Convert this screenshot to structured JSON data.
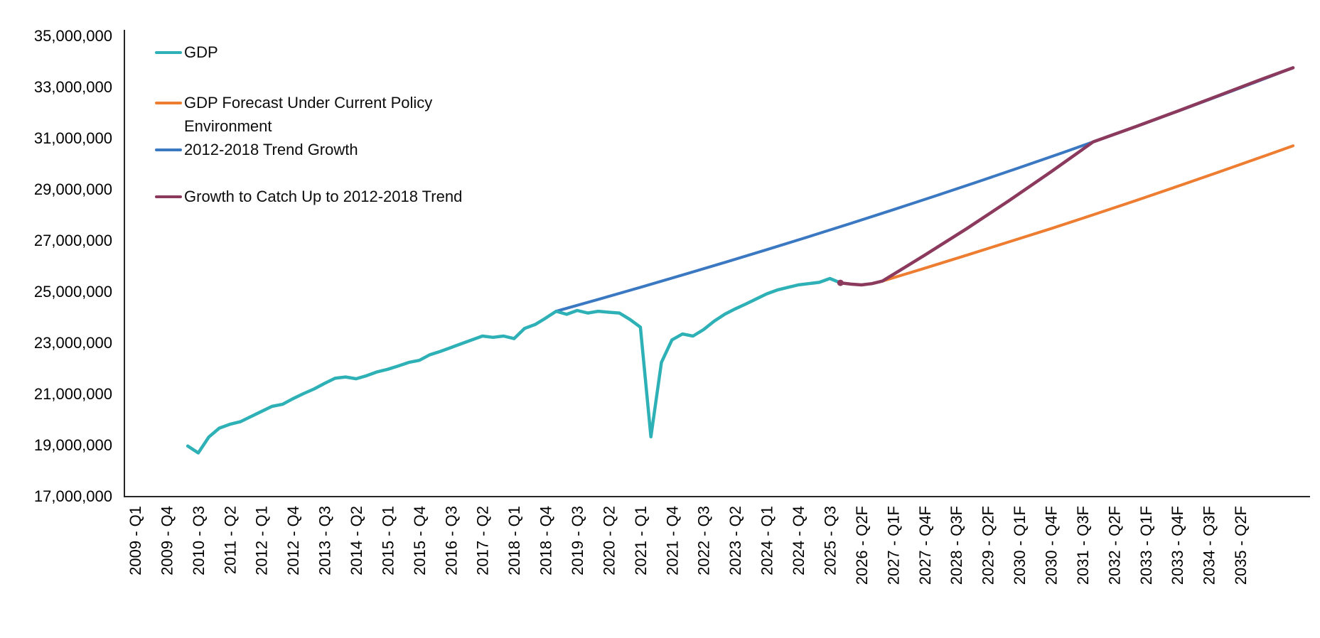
{
  "chart_data": {
    "type": "line",
    "title": "",
    "xlabel": "",
    "ylabel": "",
    "grid": false,
    "legend_position": "top-left-inside",
    "axis_color": "#262626",
    "y_axis": {
      "min": 17000000,
      "max": 35000000,
      "tick_step": 2000000,
      "tick_labels": [
        "17,000,000",
        "19,000,000",
        "21,000,000",
        "23,000,000",
        "25,000,000",
        "27,000,000",
        "29,000,000",
        "31,000,000",
        "33,000,000",
        "35,000,000"
      ]
    },
    "x_axis": {
      "unit": "quarter",
      "tick_every_n_quarters": 3,
      "tick_labels": [
        "2009 - Q1",
        "2009 - Q4",
        "2010 - Q3",
        "2011 - Q2",
        "2012 - Q1",
        "2012 - Q4",
        "2013 - Q3",
        "2014 - Q2",
        "2015 - Q1",
        "2015 - Q4",
        "2016 - Q3",
        "2017 - Q2",
        "2018 - Q1",
        "2018 - Q4",
        "2019 - Q3",
        "2020 - Q2",
        "2021 - Q1",
        "2021 - Q4",
        "2022 - Q3",
        "2023 - Q2",
        "2024 - Q1",
        "2024 - Q4",
        "2025 - Q3",
        "2026 - Q2F",
        "2027 - Q1F",
        "2027 - Q4F",
        "2028 - Q3F",
        "2029 - Q2F",
        "2030 - Q1F",
        "2030 - Q4F",
        "2031 - Q3F",
        "2032 - Q2F",
        "2033 - Q1F",
        "2033 - Q4F",
        "2034 - Q3F",
        "2035 - Q2F"
      ]
    },
    "series": [
      {
        "id": "gdp",
        "name": "GDP",
        "color": "#2EB1B6",
        "width": 4.5,
        "start_index": 5,
        "start_quarter": "2010 - Q2",
        "end_quarter": "2025 - Q4",
        "values": [
          18950000,
          18680000,
          19300000,
          19650000,
          19800000,
          19900000,
          20100000,
          20300000,
          20500000,
          20580000,
          20800000,
          21000000,
          21180000,
          21400000,
          21600000,
          21650000,
          21580000,
          21700000,
          21850000,
          21950000,
          22080000,
          22220000,
          22300000,
          22520000,
          22650000,
          22800000,
          22950000,
          23100000,
          23250000,
          23200000,
          23250000,
          23150000,
          23550000,
          23700000,
          23950000,
          24220000,
          24100000,
          24250000,
          24150000,
          24220000,
          24180000,
          24150000,
          23900000,
          23600000,
          19310000,
          22220000,
          23100000,
          23330000,
          23250000,
          23500000,
          23830000,
          24100000,
          24310000,
          24500000,
          24700000,
          24900000,
          25050000,
          25150000,
          25250000,
          25300000,
          25350000,
          25500000,
          25330000
        ]
      },
      {
        "id": "forecast-current-policy",
        "name": "GDP Forecast Under Current Policy Environment",
        "color": "#ED7D31",
        "width": 4,
        "points": [
          [
            67,
            25330000
          ],
          [
            68,
            25280000
          ],
          [
            69,
            25250000
          ],
          [
            70,
            25300000
          ],
          [
            71,
            25400000
          ],
          [
            75,
            25900000
          ],
          [
            79,
            26410000
          ],
          [
            83,
            26930000
          ],
          [
            87,
            27450000
          ],
          [
            91,
            27990000
          ],
          [
            95,
            28540000
          ],
          [
            99,
            29100000
          ],
          [
            103,
            29670000
          ],
          [
            107,
            30250000
          ],
          [
            110,
            30690000
          ]
        ]
      },
      {
        "id": "trend-2012-2018",
        "name": "2012-2018 Trend Growth",
        "color": "#3A78C2",
        "width": 4,
        "points": [
          [
            40,
            24220000
          ],
          [
            44,
            24684000
          ],
          [
            48,
            25156000
          ],
          [
            52,
            25637000
          ],
          [
            56,
            26128000
          ],
          [
            60,
            26628000
          ],
          [
            64,
            27137000
          ],
          [
            68,
            27656000
          ],
          [
            72,
            28185000
          ],
          [
            76,
            28724000
          ],
          [
            80,
            29274000
          ],
          [
            84,
            29834000
          ],
          [
            88,
            30404000
          ],
          [
            92,
            30986000
          ],
          [
            96,
            31579000
          ],
          [
            100,
            32183000
          ],
          [
            104,
            32798000
          ],
          [
            108,
            33426000
          ],
          [
            110,
            33744000
          ]
        ]
      },
      {
        "id": "catch-up-to-trend",
        "name": "Growth to Catch Up to 2012-2018 Trend",
        "color": "#8B3A5E",
        "width": 4.5,
        "points": [
          [
            67,
            25330000
          ],
          [
            68,
            25280000
          ],
          [
            69,
            25250000
          ],
          [
            70,
            25300000
          ],
          [
            71,
            25400000
          ],
          [
            75,
            26410000
          ],
          [
            79,
            27450000
          ],
          [
            83,
            28540000
          ],
          [
            87,
            29670000
          ],
          [
            91,
            30840000
          ],
          [
            95,
            31430000
          ],
          [
            99,
            32040000
          ],
          [
            103,
            32660000
          ],
          [
            107,
            33290000
          ],
          [
            110,
            33740000
          ]
        ]
      }
    ]
  },
  "legend": {
    "items": [
      {
        "label": "GDP",
        "color": "#2EB1B6"
      },
      {
        "label": "GDP Forecast Under Current Policy Environment",
        "color": "#ED7D31"
      },
      {
        "label": "2012-2018 Trend Growth",
        "color": "#3A78C2"
      },
      {
        "label": "Growth to Catch Up to 2012-2018 Trend",
        "color": "#8B3A5E"
      }
    ]
  }
}
